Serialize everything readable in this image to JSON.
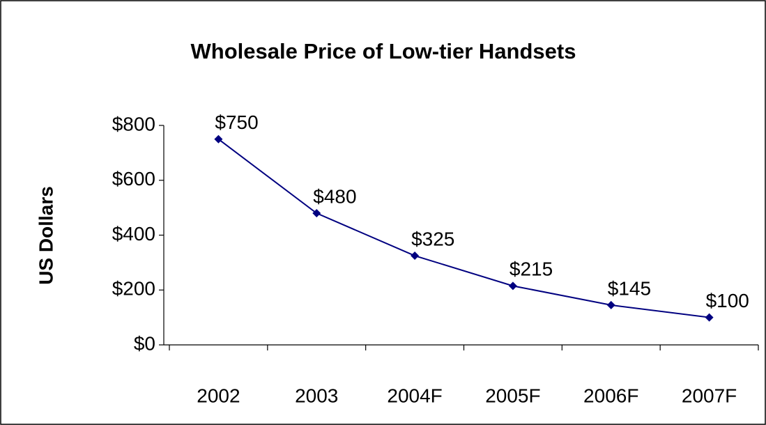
{
  "chart_data": {
    "type": "line",
    "title": "Wholesale Price of Low-tier Handsets",
    "y_label": "US Dollars",
    "categories": [
      "2002",
      "2003",
      "2004F",
      "2005F",
      "2006F",
      "2007F"
    ],
    "series": [
      {
        "name": "Wholesale Price",
        "color": "#000080",
        "values": [
          750,
          480,
          325,
          215,
          145,
          100
        ],
        "value_labels": [
          "$750",
          "$480",
          "$325",
          "$215",
          "$145",
          "$100"
        ]
      }
    ],
    "ylim": [
      0,
      800
    ],
    "yticks": [
      {
        "value": 0,
        "label": "$0"
      },
      {
        "value": 200,
        "label": "$200"
      },
      {
        "value": 400,
        "label": "$400"
      },
      {
        "value": 600,
        "label": "$600"
      },
      {
        "value": 800,
        "label": "$800"
      }
    ],
    "legend": false
  }
}
